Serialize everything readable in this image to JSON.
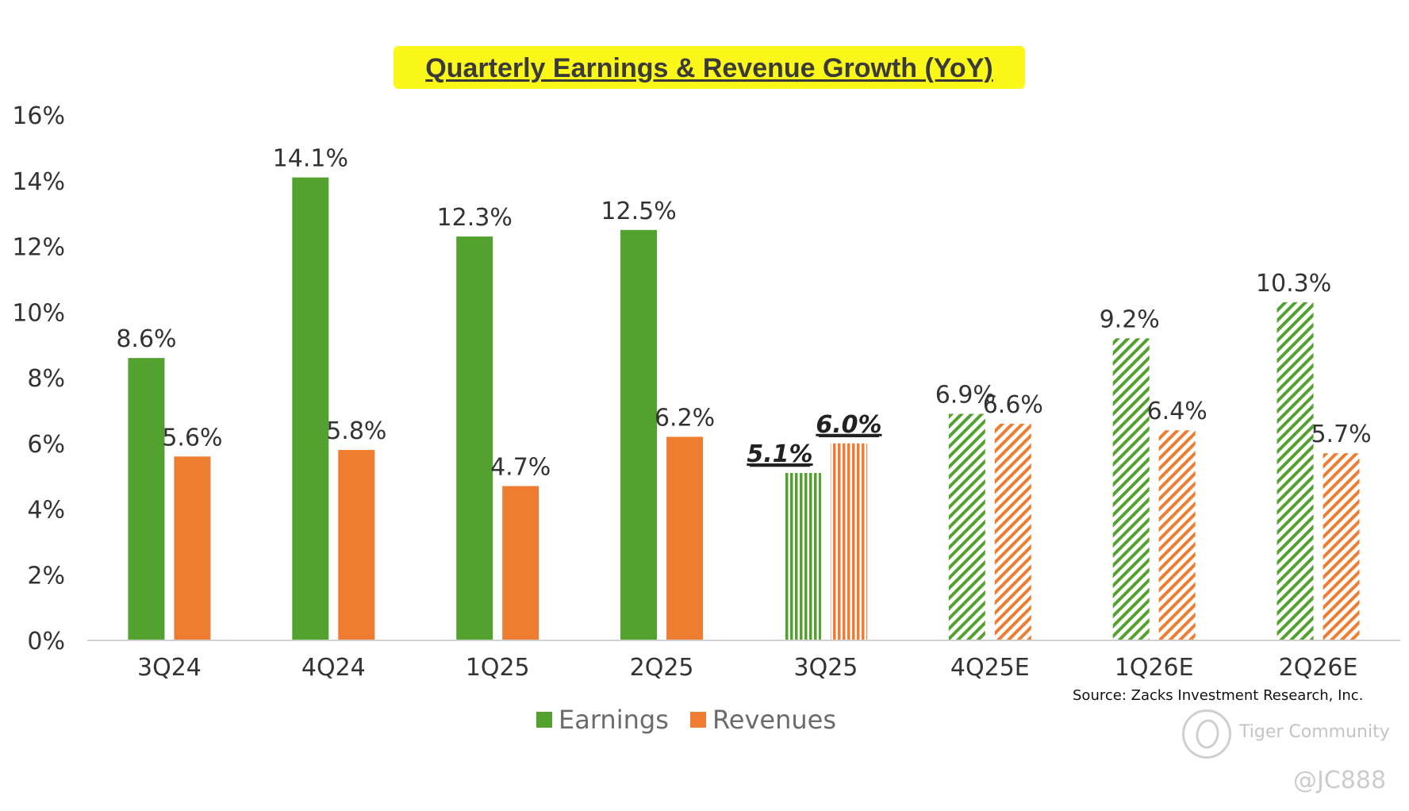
{
  "chart_data": {
    "type": "bar",
    "title": "Quarterly Earnings & Revenue Growth (YoY)",
    "xlabel": "",
    "ylabel": "",
    "ylim": [
      0,
      16
    ],
    "yticks": [
      0,
      2,
      4,
      6,
      8,
      10,
      12,
      14,
      16
    ],
    "ytick_labels": [
      "0%",
      "2%",
      "4%",
      "6%",
      "8%",
      "10%",
      "12%",
      "14%",
      "16%"
    ],
    "categories": [
      "3Q24",
      "4Q24",
      "1Q25",
      "2Q25",
      "3Q25",
      "4Q25E",
      "1Q26E",
      "2Q26E"
    ],
    "bar_styles": [
      "solid",
      "solid",
      "solid",
      "solid",
      "vertical-stripes",
      "diagonal-hatch",
      "diagonal-hatch",
      "diagonal-hatch"
    ],
    "highlighted_category": "3Q25",
    "series": [
      {
        "name": "Earnings",
        "color": "#53a12f",
        "values": [
          8.6,
          14.1,
          12.3,
          12.5,
          5.1,
          6.9,
          9.2,
          10.3
        ],
        "labels": [
          "8.6%",
          "14.1%",
          "12.3%",
          "12.5%",
          "5.1%",
          "6.9%",
          "9.2%",
          "10.3%"
        ]
      },
      {
        "name": "Revenues",
        "color": "#ee7d31",
        "values": [
          5.6,
          5.8,
          4.7,
          6.2,
          6.0,
          6.6,
          6.4,
          5.7
        ],
        "labels": [
          "5.6%",
          "5.8%",
          "4.7%",
          "6.2%",
          "6.0%",
          "6.6%",
          "6.4%",
          "5.7%"
        ]
      }
    ],
    "legend": [
      "Earnings",
      "Revenues"
    ],
    "legend_position": "bottom-center",
    "grid": false,
    "source": "Source: Zacks Investment Research, Inc."
  },
  "watermark": {
    "brand": "Tiger Community",
    "user": "@JC888"
  }
}
